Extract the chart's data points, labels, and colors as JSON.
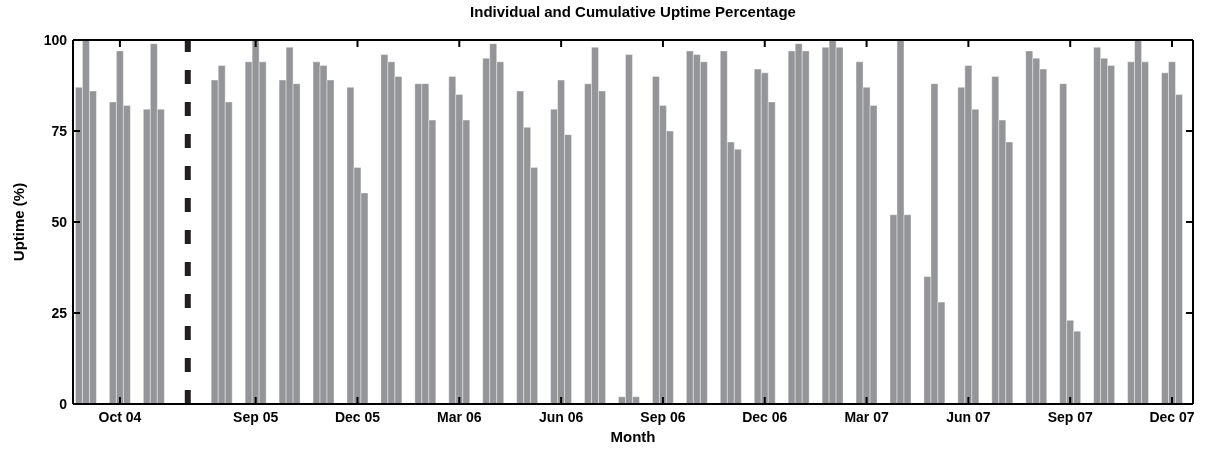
{
  "chart_data": {
    "type": "bar",
    "title": "Individual and Cumulative Uptime Percentage",
    "xlabel": "Month",
    "ylabel": "Uptime (%)",
    "categories": [
      null,
      "Oct 04",
      null,
      null,
      null,
      "Sep 05",
      null,
      null,
      "Dec 05",
      null,
      null,
      "Mar 06",
      null,
      null,
      "Jun 06",
      null,
      null,
      "Sep 06",
      null,
      null,
      "Dec 06",
      null,
      null,
      "Mar 07",
      null,
      null,
      "Jun 07",
      null,
      null,
      "Sep 07",
      null,
      null,
      "Dec 07"
    ],
    "series": [
      {
        "color": "#939598",
        "values": [
          87,
          83,
          81,
          null,
          89,
          94,
          89,
          94,
          87,
          96,
          88,
          90,
          95,
          86,
          81,
          88,
          2,
          90,
          97,
          97,
          92,
          97,
          98,
          94,
          52,
          35,
          87,
          90,
          97,
          88,
          98,
          94,
          91
        ]
      },
      {
        "color": "#939598",
        "values": [
          100,
          97,
          99,
          null,
          93,
          100,
          98,
          93,
          65,
          94,
          88,
          85,
          99,
          76,
          89,
          98,
          96,
          82,
          96,
          72,
          91,
          99,
          100,
          87,
          100,
          88,
          93,
          78,
          95,
          23,
          95,
          100,
          94
        ]
      },
      {
        "color": "#939598",
        "values": [
          86,
          82,
          81,
          null,
          83,
          94,
          88,
          89,
          58,
          90,
          78,
          78,
          94,
          65,
          74,
          86,
          2,
          75,
          94,
          70,
          83,
          97,
          98,
          82,
          52,
          28,
          81,
          72,
          92,
          20,
          93,
          94,
          85
        ]
      }
    ],
    "ylim": [
      0,
      100
    ],
    "yticks": [
      0,
      25,
      50,
      75,
      100
    ]
  }
}
